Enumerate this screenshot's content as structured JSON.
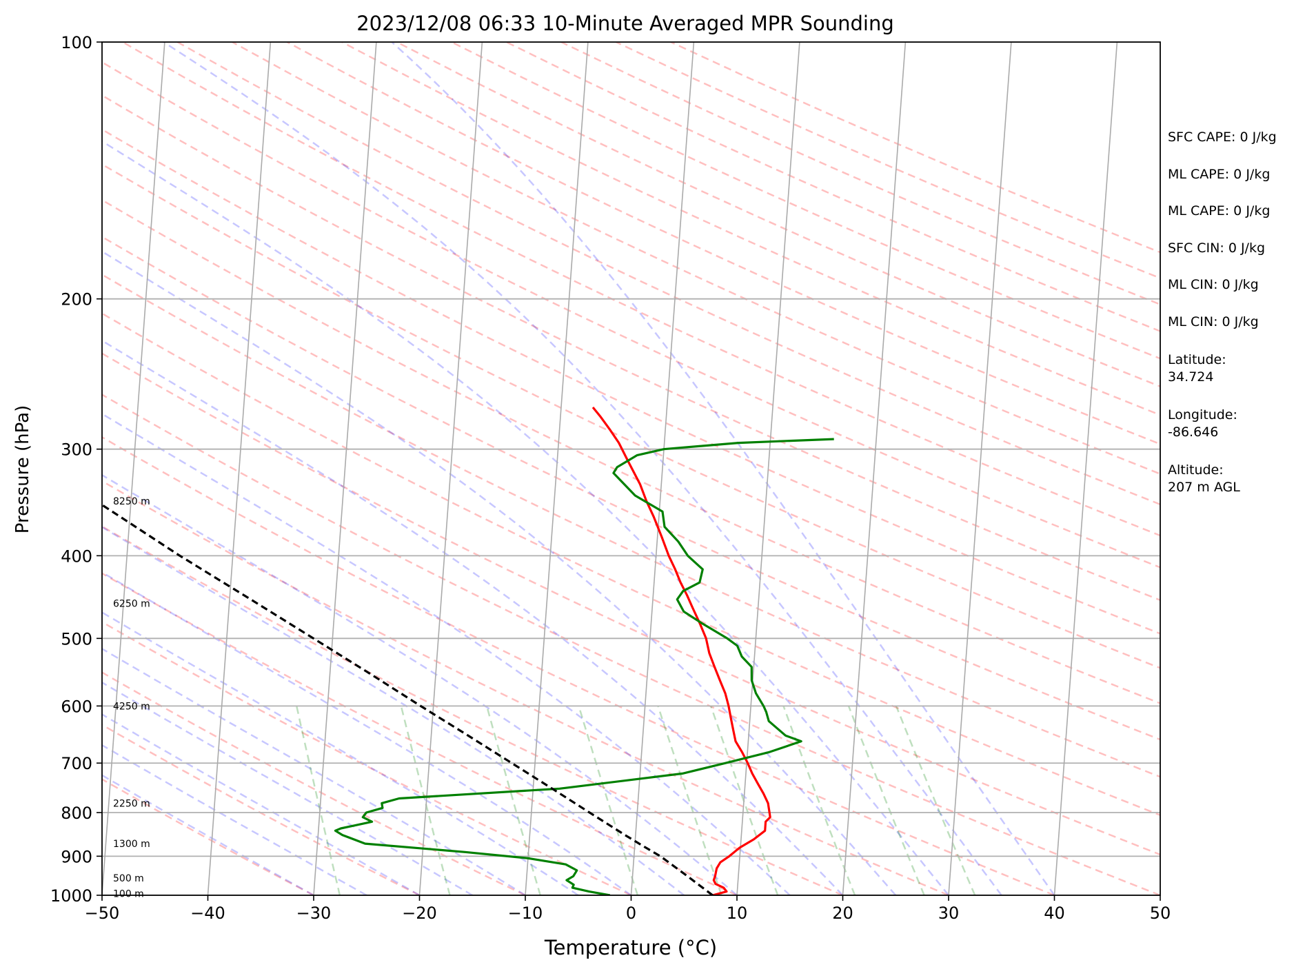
{
  "chart_data": {
    "type": "skew-t",
    "title": "2023/12/08 06:33 10-Minute Averaged MPR Sounding",
    "xlabel": "Temperature (°C)",
    "ylabel": "Pressure (hPa)",
    "xlim": [
      -50,
      50
    ],
    "ylim": [
      1000,
      100
    ],
    "y_scale": "log",
    "x_ticks": [
      "−50",
      "−40",
      "−30",
      "−20",
      "−10",
      "0",
      "10",
      "20",
      "30",
      "40",
      "50"
    ],
    "x_tick_values": [
      -50,
      -40,
      -30,
      -20,
      -10,
      0,
      10,
      20,
      30,
      40,
      50
    ],
    "y_ticks": [
      "100",
      "200",
      "300",
      "400",
      "500",
      "600",
      "700",
      "800",
      "900",
      "1000"
    ],
    "y_tick_values": [
      100,
      200,
      300,
      400,
      500,
      600,
      700,
      800,
      900,
      1000
    ],
    "grid": true,
    "series": [
      {
        "color": "#ff0000",
        "points": [
          [
            1000,
            7.7
          ],
          [
            990,
            9
          ],
          [
            980,
            8.7
          ],
          [
            970,
            7.9
          ],
          [
            960,
            7.7
          ],
          [
            950,
            7.8
          ],
          [
            930,
            7.9
          ],
          [
            915,
            8.2
          ],
          [
            900,
            9
          ],
          [
            880,
            9.9
          ],
          [
            860,
            11.2
          ],
          [
            840,
            12.2
          ],
          [
            820,
            12.2
          ],
          [
            810,
            12.6
          ],
          [
            800,
            12.5
          ],
          [
            780,
            12.3
          ],
          [
            760,
            11.8
          ],
          [
            740,
            11.2
          ],
          [
            720,
            10.6
          ],
          [
            700,
            10.1
          ],
          [
            680,
            9.5
          ],
          [
            660,
            8.8
          ],
          [
            640,
            8.5
          ],
          [
            620,
            8.2
          ],
          [
            600,
            7.9
          ],
          [
            580,
            7.5
          ],
          [
            560,
            6.9
          ],
          [
            540,
            6.3
          ],
          [
            520,
            5.7
          ],
          [
            500,
            5.3
          ],
          [
            480,
            4.6
          ],
          [
            460,
            3.8
          ],
          [
            445,
            3.2
          ],
          [
            430,
            2.5
          ],
          [
            415,
            1.9
          ],
          [
            400,
            1.2
          ],
          [
            380,
            0.4
          ],
          [
            360,
            -0.5
          ],
          [
            345,
            -1.3
          ],
          [
            330,
            -2.0
          ],
          [
            310,
            -3.3
          ],
          [
            295,
            -4.3
          ],
          [
            285,
            -5.2
          ],
          [
            275,
            -6.2
          ],
          [
            268,
            -7.0
          ]
        ]
      },
      {
        "color": "#008000",
        "points": [
          [
            1000,
            -2
          ],
          [
            990,
            -4
          ],
          [
            980,
            -5.6
          ],
          [
            972,
            -5.5
          ],
          [
            960,
            -6.2
          ],
          [
            950,
            -5.6
          ],
          [
            935,
            -5.3
          ],
          [
            920,
            -6.4
          ],
          [
            905,
            -10
          ],
          [
            890,
            -16
          ],
          [
            870,
            -25.5
          ],
          [
            850,
            -27.7
          ],
          [
            840,
            -28.4
          ],
          [
            835,
            -27.9
          ],
          [
            820,
            -25
          ],
          [
            810,
            -25.9
          ],
          [
            800,
            -25.6
          ],
          [
            790,
            -24.1
          ],
          [
            780,
            -24.2
          ],
          [
            770,
            -22.6
          ],
          [
            750,
            -7.5
          ],
          [
            720,
            4
          ],
          [
            700,
            8
          ],
          [
            680,
            12
          ],
          [
            660,
            15
          ],
          [
            650,
            13.5
          ],
          [
            625,
            11.8
          ],
          [
            610,
            11.5
          ],
          [
            600,
            11.2
          ],
          [
            580,
            10.4
          ],
          [
            560,
            9.9
          ],
          [
            540,
            9.8
          ],
          [
            525,
            8.8
          ],
          [
            510,
            8.3
          ],
          [
            500,
            7.3
          ],
          [
            480,
            4.8
          ],
          [
            465,
            3
          ],
          [
            450,
            2.3
          ],
          [
            440,
            2.8
          ],
          [
            430,
            4.3
          ],
          [
            415,
            4.5
          ],
          [
            400,
            3
          ],
          [
            385,
            2
          ],
          [
            370,
            0.6
          ],
          [
            355,
            0.3
          ],
          [
            340,
            -2.4
          ],
          [
            320,
            -4.6
          ],
          [
            315,
            -4.3
          ],
          [
            305,
            -2.5
          ],
          [
            300,
            0
          ],
          [
            295,
            7
          ],
          [
            292,
            16
          ]
        ]
      },
      {
        "color": "#000000",
        "dash": true,
        "points": [
          [
            1000,
            7.7
          ],
          [
            950,
            5.2
          ],
          [
            900,
            2.5
          ],
          [
            880,
            1.1
          ],
          [
            850,
            -1
          ],
          [
            800,
            -4.5
          ],
          [
            750,
            -8.2
          ],
          [
            700,
            -12.2
          ],
          [
            650,
            -16.5
          ],
          [
            600,
            -21.2
          ],
          [
            550,
            -26.2
          ],
          [
            500,
            -31.8
          ],
          [
            450,
            -38
          ],
          [
            400,
            -45
          ],
          [
            350,
            -52.5
          ],
          [
            300,
            -61
          ],
          [
            270,
            -66.5
          ]
        ]
      }
    ],
    "height_labels": [
      "8250 m",
      "6250 m",
      "4250 m",
      "2250 m",
      "1300 m",
      "500 m",
      "100 m"
    ],
    "height_label_pressures": [
      345,
      455,
      600,
      780,
      870,
      955,
      995
    ]
  },
  "sidebar": {
    "sfc_cape": "SFC CAPE: 0 J/kg",
    "ml_cape_1": "ML CAPE: 0 J/kg",
    "ml_cape_2": "ML CAPE: 0 J/kg",
    "sfc_cin": "SFC CIN: 0 J/kg",
    "ml_cin_1": "ML CIN: 0 J/kg",
    "ml_cin_2": "ML CIN: 0 J/kg",
    "latitude": "Latitude:\n34.724",
    "longitude": "Longitude:\n-86.646",
    "altitude": "Altitude:\n207 m AGL"
  }
}
